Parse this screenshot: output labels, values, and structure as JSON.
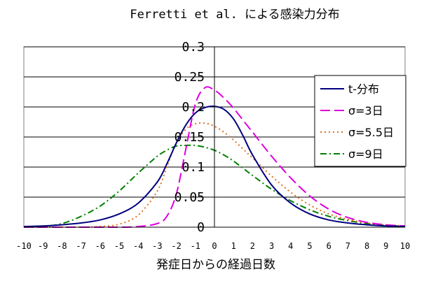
{
  "chart_data": {
    "type": "line",
    "title": "Ferretti et al. による感染力分布",
    "xlabel": "発症日からの経過日数",
    "ylabel": "",
    "xlim": [
      -10,
      10
    ],
    "ylim": [
      0,
      0.3
    ],
    "xticks": [
      "-10",
      "-9",
      "-8",
      "-7",
      "-6",
      "-5",
      "-4",
      "-3",
      "-2",
      "-1",
      "0",
      "1",
      "2",
      "3",
      "4",
      "5",
      "6",
      "7",
      "8",
      "9",
      "10"
    ],
    "yticks": [
      "0",
      "0.05",
      "0.1",
      "0.15",
      "0.2",
      "0.25",
      "0.3"
    ],
    "grid": "horizontal",
    "legend_position": "right",
    "x": [
      -10,
      -9,
      -8,
      -7,
      -6,
      -5,
      -4,
      -3,
      -2.5,
      -2,
      -1.5,
      -1,
      -0.5,
      0,
      0.5,
      1,
      1.5,
      2,
      3,
      4,
      5,
      6,
      7,
      8,
      9,
      10
    ],
    "series": [
      {
        "name": "t-分布",
        "color": "#000080",
        "dash": "solid",
        "values": [
          0.001,
          0.002,
          0.004,
          0.007,
          0.012,
          0.022,
          0.04,
          0.075,
          0.105,
          0.14,
          0.17,
          0.19,
          0.199,
          0.201,
          0.196,
          0.18,
          0.152,
          0.12,
          0.07,
          0.04,
          0.022,
          0.012,
          0.007,
          0.004,
          0.002,
          0.001
        ]
      },
      {
        "name": "σ=3日",
        "color": "#dd00dd",
        "dash": "long-dash",
        "values": [
          0.0,
          0.0,
          0.0,
          0.0,
          0.0,
          0.0,
          0.001,
          0.006,
          0.018,
          0.055,
          0.13,
          0.205,
          0.232,
          0.228,
          0.215,
          0.198,
          0.178,
          0.158,
          0.118,
          0.082,
          0.052,
          0.03,
          0.016,
          0.008,
          0.004,
          0.002
        ]
      },
      {
        "name": "σ=5.5日",
        "color": "#e07020",
        "dash": "dotted",
        "values": [
          0.0,
          0.0,
          0.0,
          0.0,
          0.001,
          0.005,
          0.02,
          0.06,
          0.1,
          0.14,
          0.163,
          0.172,
          0.173,
          0.168,
          0.158,
          0.145,
          0.13,
          0.115,
          0.085,
          0.058,
          0.037,
          0.022,
          0.013,
          0.007,
          0.004,
          0.002
        ]
      },
      {
        "name": "σ=9日",
        "color": "#008000",
        "dash": "dash-dot",
        "values": [
          0.0,
          0.001,
          0.006,
          0.018,
          0.035,
          0.06,
          0.09,
          0.118,
          0.128,
          0.135,
          0.136,
          0.136,
          0.133,
          0.128,
          0.12,
          0.11,
          0.098,
          0.086,
          0.063,
          0.044,
          0.029,
          0.018,
          0.011,
          0.006,
          0.003,
          0.002
        ]
      }
    ]
  }
}
